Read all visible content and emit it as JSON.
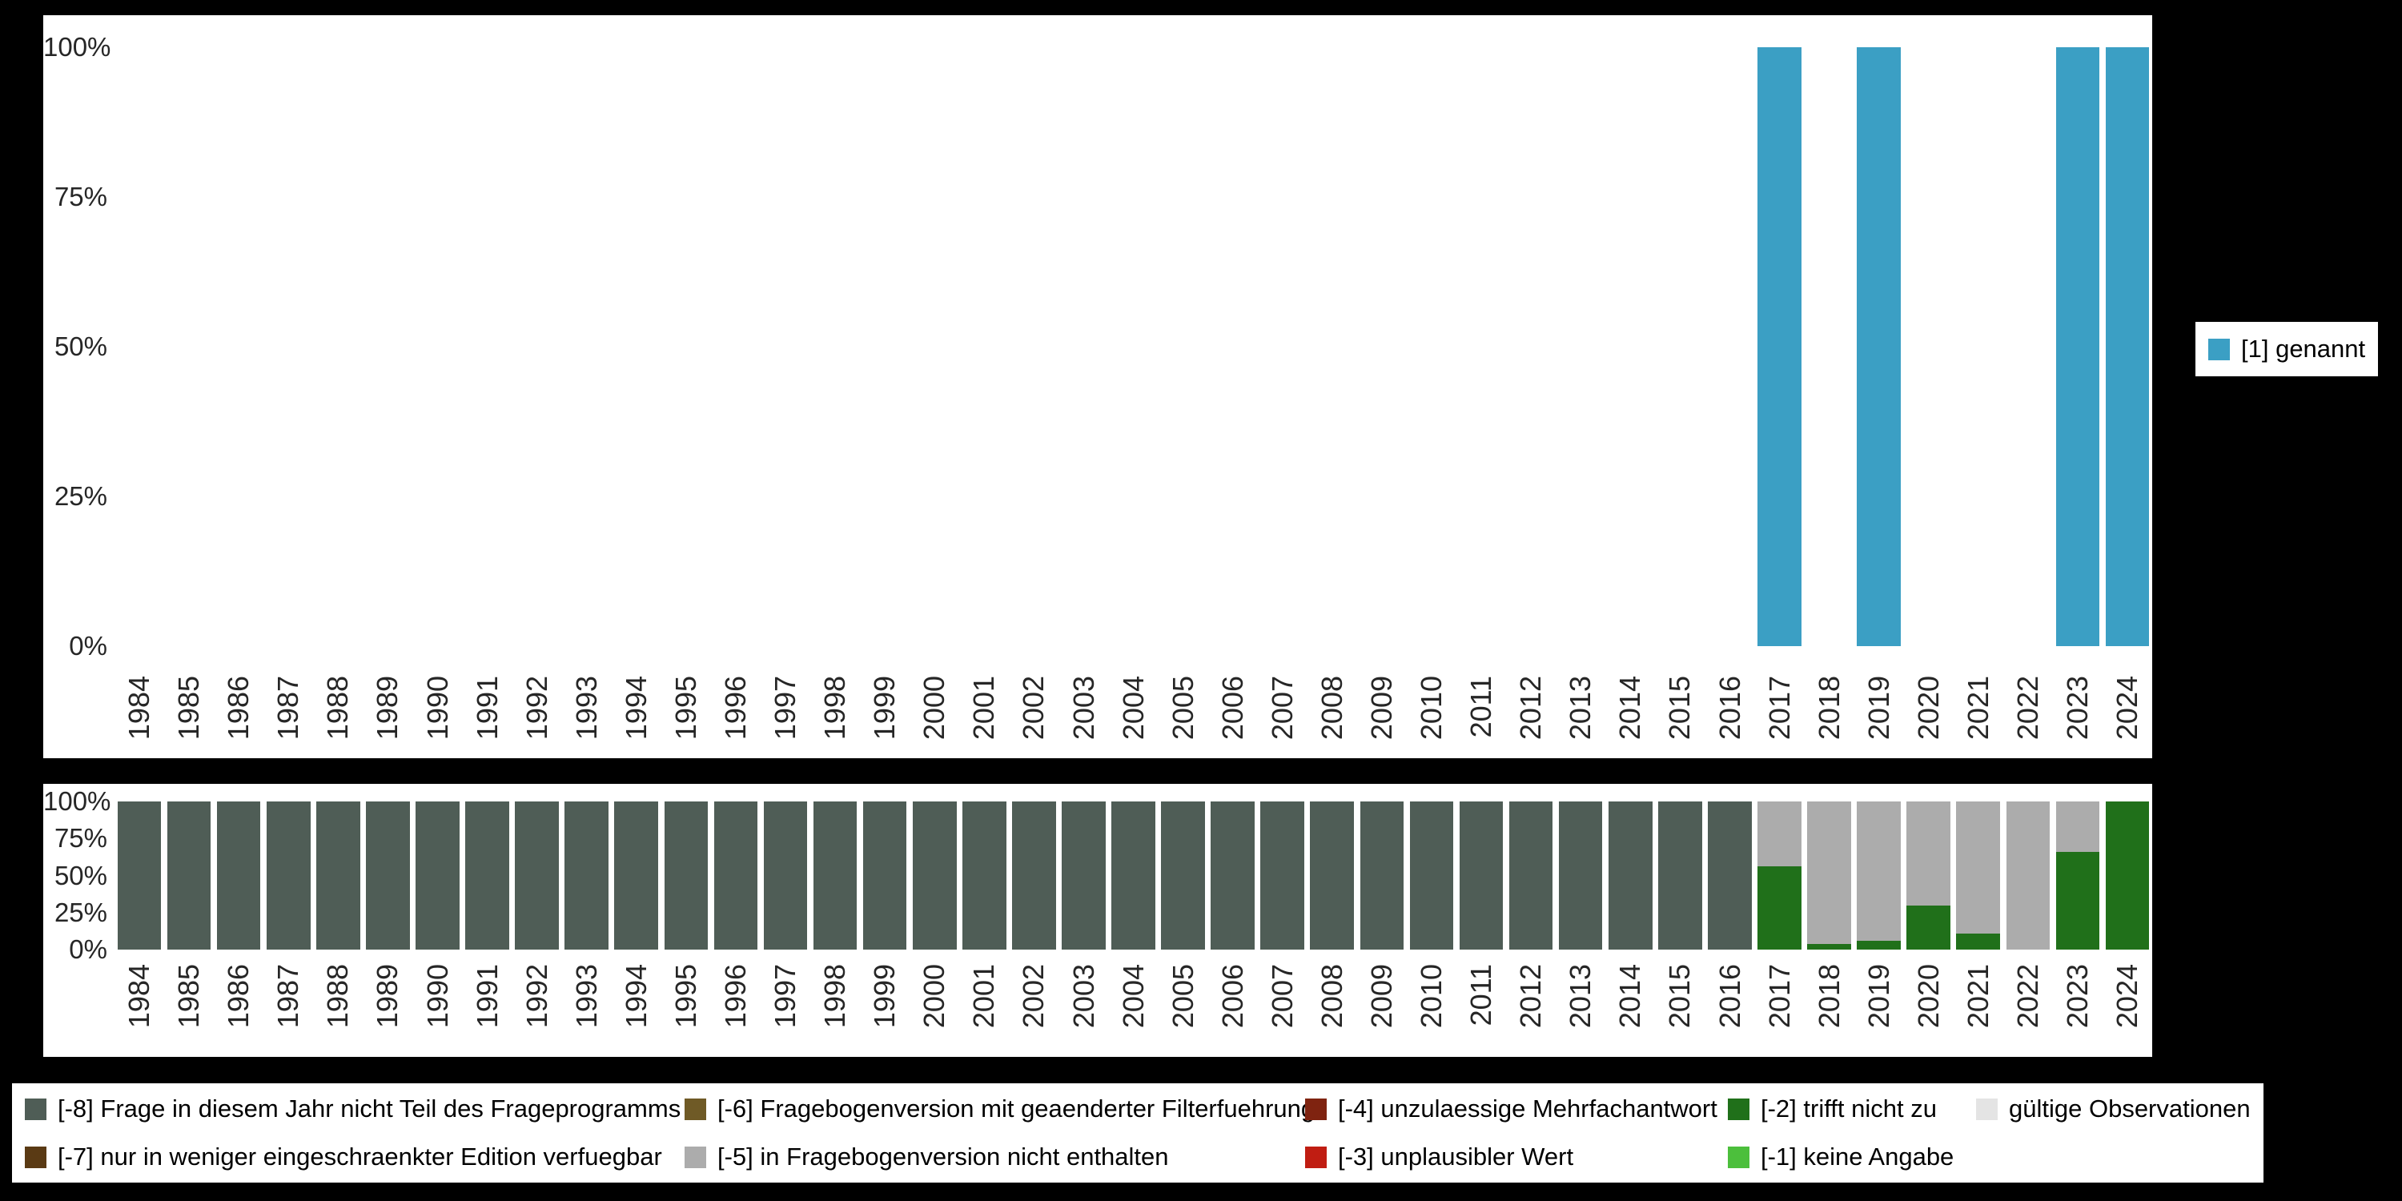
{
  "colors": {
    "genannt": "#3b9fc4",
    "-8": "#4f5d56",
    "-7": "#5a3a14",
    "-6": "#6f5a26",
    "-5": "#acacac",
    "-4": "#7f2310",
    "-3": "#c01d12",
    "-2": "#20701a",
    "-1": "#4cbf3c",
    "valid": "#e4e4e4"
  },
  "legend_top": {
    "key": "genannt",
    "label": "[1] genannt"
  },
  "legend_bottom": {
    "items": [
      {
        "key": "-8",
        "label": "[-8] Frage in diesem Jahr nicht Teil des Frageprogramms"
      },
      {
        "key": "-6",
        "label": "[-6] Fragebogenversion mit geaenderter Filterfuehrung"
      },
      {
        "key": "-4",
        "label": "[-4] unzulaessige Mehrfachantwort"
      },
      {
        "key": "-2",
        "label": "[-2] trifft nicht zu"
      },
      {
        "key": "valid",
        "label": "gültige Observationen"
      },
      {
        "key": "-7",
        "label": "[-7] nur in weniger eingeschraenkter Edition verfuegbar"
      },
      {
        "key": "-5",
        "label": "[-5] in Fragebogenversion nicht enthalten"
      },
      {
        "key": "-3",
        "label": "[-3] unplausibler Wert"
      },
      {
        "key": "-1",
        "label": "[-1] keine Angabe"
      }
    ]
  },
  "chart_data": [
    {
      "type": "bar",
      "title": "",
      "xlabel": "",
      "ylabel": "",
      "ylim": [
        0,
        100
      ],
      "yticks": [
        "100%",
        "75%",
        "50%",
        "25%",
        "0%"
      ],
      "legend_position": "right",
      "grid": false,
      "categories": [
        "1984",
        "1985",
        "1986",
        "1987",
        "1988",
        "1989",
        "1990",
        "1991",
        "1992",
        "1993",
        "1994",
        "1995",
        "1996",
        "1997",
        "1998",
        "1999",
        "2000",
        "2001",
        "2002",
        "2003",
        "2004",
        "2005",
        "2006",
        "2007",
        "2008",
        "2009",
        "2010",
        "2011",
        "2012",
        "2013",
        "2014",
        "2015",
        "2016",
        "2017",
        "2018",
        "2019",
        "2020",
        "2021",
        "2022",
        "2023",
        "2024"
      ],
      "series": [
        {
          "name": "[1] genannt",
          "color_key": "genannt",
          "values": [
            0,
            0,
            0,
            0,
            0,
            0,
            0,
            0,
            0,
            0,
            0,
            0,
            0,
            0,
            0,
            0,
            0,
            0,
            0,
            0,
            0,
            0,
            0,
            0,
            0,
            0,
            0,
            0,
            0,
            0,
            0,
            0,
            0,
            100,
            0,
            100,
            0,
            0,
            0,
            100,
            100
          ]
        }
      ]
    },
    {
      "type": "stacked-bar-100",
      "title": "",
      "xlabel": "",
      "ylabel": "",
      "ylim": [
        0,
        100
      ],
      "yticks": [
        "100%",
        "75%",
        "50%",
        "25%",
        "0%"
      ],
      "grid": false,
      "categories": [
        "1984",
        "1985",
        "1986",
        "1987",
        "1988",
        "1989",
        "1990",
        "1991",
        "1992",
        "1993",
        "1994",
        "1995",
        "1996",
        "1997",
        "1998",
        "1999",
        "2000",
        "2001",
        "2002",
        "2003",
        "2004",
        "2005",
        "2006",
        "2007",
        "2008",
        "2009",
        "2010",
        "2011",
        "2012",
        "2013",
        "2014",
        "2015",
        "2016",
        "2017",
        "2018",
        "2019",
        "2020",
        "2021",
        "2022",
        "2023",
        "2024"
      ],
      "segments": [
        [
          [
            "-8",
            100
          ]
        ],
        [
          [
            "-8",
            100
          ]
        ],
        [
          [
            "-8",
            100
          ]
        ],
        [
          [
            "-8",
            100
          ]
        ],
        [
          [
            "-8",
            100
          ]
        ],
        [
          [
            "-8",
            100
          ]
        ],
        [
          [
            "-8",
            100
          ]
        ],
        [
          [
            "-8",
            100
          ]
        ],
        [
          [
            "-8",
            100
          ]
        ],
        [
          [
            "-8",
            100
          ]
        ],
        [
          [
            "-8",
            100
          ]
        ],
        [
          [
            "-8",
            100
          ]
        ],
        [
          [
            "-8",
            100
          ]
        ],
        [
          [
            "-8",
            100
          ]
        ],
        [
          [
            "-8",
            100
          ]
        ],
        [
          [
            "-8",
            100
          ]
        ],
        [
          [
            "-8",
            100
          ]
        ],
        [
          [
            "-8",
            100
          ]
        ],
        [
          [
            "-8",
            100
          ]
        ],
        [
          [
            "-8",
            100
          ]
        ],
        [
          [
            "-8",
            100
          ]
        ],
        [
          [
            "-8",
            100
          ]
        ],
        [
          [
            "-8",
            100
          ]
        ],
        [
          [
            "-8",
            100
          ]
        ],
        [
          [
            "-8",
            100
          ]
        ],
        [
          [
            "-8",
            100
          ]
        ],
        [
          [
            "-8",
            100
          ]
        ],
        [
          [
            "-8",
            100
          ]
        ],
        [
          [
            "-8",
            100
          ]
        ],
        [
          [
            "-8",
            100
          ]
        ],
        [
          [
            "-8",
            100
          ]
        ],
        [
          [
            "-8",
            100
          ]
        ],
        [
          [
            "-8",
            100
          ]
        ],
        [
          [
            "-2",
            56
          ],
          [
            "-5",
            44
          ]
        ],
        [
          [
            "-2",
            4
          ],
          [
            "-5",
            96
          ]
        ],
        [
          [
            "-2",
            6
          ],
          [
            "-5",
            94
          ]
        ],
        [
          [
            "-2",
            30
          ],
          [
            "-5",
            70
          ]
        ],
        [
          [
            "-2",
            11
          ],
          [
            "-5",
            89
          ]
        ],
        [
          [
            "-5",
            100
          ]
        ],
        [
          [
            "-2",
            66
          ],
          [
            "-5",
            34
          ]
        ],
        [
          [
            "-2",
            100
          ]
        ]
      ]
    }
  ]
}
